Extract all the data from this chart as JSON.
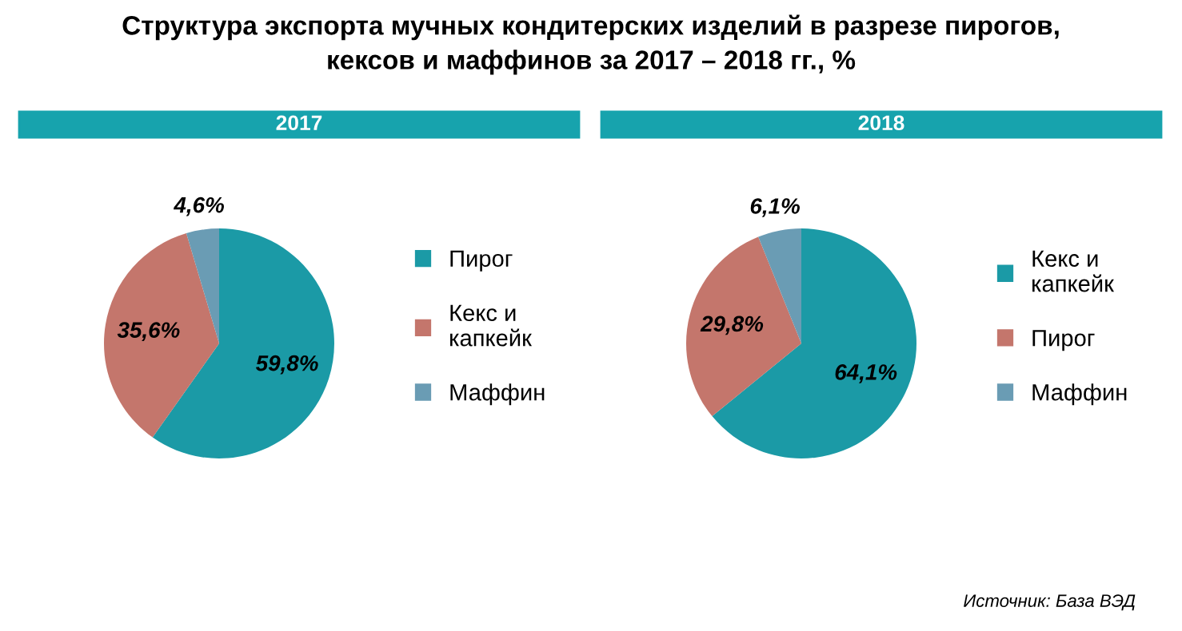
{
  "chart_data": [
    {
      "type": "pie",
      "title": "Структура экспорта мучных кондитерских изделий в разрезе пирогов,\nкексов и маффинов за 2017 – 2018 гг., %",
      "subtitle": "2017",
      "categories": [
        "Пирог",
        "Кекс и\nкапкейк",
        "Маффин"
      ],
      "values": [
        59.8,
        35.6,
        4.6
      ],
      "colors": [
        "#1b9aa6",
        "#c4766c",
        "#6a9cb4"
      ],
      "value_labels": [
        "59,8%",
        "35,6%",
        "4,6%"
      ],
      "legend": "right"
    },
    {
      "type": "pie",
      "subtitle": "2018",
      "categories": [
        "Кекс и\nкапкейк",
        "Пирог",
        "Маффин"
      ],
      "values": [
        64.1,
        29.8,
        6.1
      ],
      "colors": [
        "#1b9aa6",
        "#c4766c",
        "#6a9cb4"
      ],
      "value_labels": [
        "64,1%",
        "29,8%",
        "6,1%"
      ],
      "legend": "right",
      "annotations": [
        "Источник: База ВЭД"
      ]
    }
  ]
}
